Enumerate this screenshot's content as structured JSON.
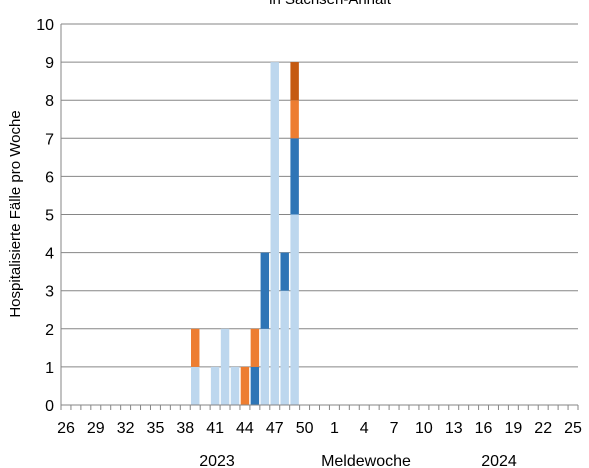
{
  "chart_data": {
    "type": "bar",
    "stacked": true,
    "title": "in Sachsen-Anhalt",
    "xlabel": "Meldewoche",
    "ylabel": "Hospitalisierte Fälle pro Woche",
    "ylim": [
      0,
      10
    ],
    "yticks": [
      0,
      1,
      2,
      3,
      4,
      5,
      6,
      7,
      8,
      9,
      10
    ],
    "grid": true,
    "legend": "none",
    "year_labels": [
      "2023",
      "2024"
    ],
    "categories": [
      "26",
      "27",
      "28",
      "29",
      "30",
      "31",
      "32",
      "33",
      "34",
      "35",
      "36",
      "37",
      "38",
      "39",
      "40",
      "41",
      "42",
      "43",
      "44",
      "45",
      "46",
      "47",
      "48",
      "49",
      "50",
      "51",
      "52",
      "1",
      "2",
      "3",
      "4",
      "5",
      "6",
      "7",
      "8",
      "9",
      "10",
      "11",
      "12",
      "13",
      "14",
      "15",
      "16",
      "17",
      "18",
      "19",
      "20",
      "21",
      "22",
      "23",
      "24",
      "25"
    ],
    "tick_labels": [
      "26",
      "29",
      "32",
      "35",
      "38",
      "41",
      "44",
      "47",
      "50",
      "1",
      "4",
      "7",
      "10",
      "13",
      "16",
      "19",
      "22",
      "25"
    ],
    "series": [
      {
        "color": "#bdd7ee",
        "values": [
          0,
          0,
          0,
          0,
          0,
          0,
          0,
          0,
          0,
          0,
          0,
          0,
          0,
          1,
          0,
          1,
          2,
          1,
          0,
          0,
          2,
          9,
          3,
          5,
          0,
          0,
          0,
          0,
          0,
          0,
          0,
          0,
          0,
          0,
          0,
          0,
          0,
          0,
          0,
          0,
          0,
          0,
          0,
          0,
          0,
          0,
          0,
          0,
          0,
          0,
          0,
          0
        ]
      },
      {
        "color": "#2e75b6",
        "values": [
          0,
          0,
          0,
          0,
          0,
          0,
          0,
          0,
          0,
          0,
          0,
          0,
          0,
          0,
          0,
          0,
          0,
          0,
          0,
          1,
          2,
          0,
          1,
          2,
          0,
          0,
          0,
          0,
          0,
          0,
          0,
          0,
          0,
          0,
          0,
          0,
          0,
          0,
          0,
          0,
          0,
          0,
          0,
          0,
          0,
          0,
          0,
          0,
          0,
          0,
          0,
          0
        ]
      },
      {
        "color": "#ed7d31",
        "values": [
          0,
          0,
          0,
          0,
          0,
          0,
          0,
          0,
          0,
          0,
          0,
          0,
          0,
          1,
          0,
          0,
          0,
          0,
          1,
          1,
          0,
          0,
          0,
          1,
          0,
          0,
          0,
          0,
          0,
          0,
          0,
          0,
          0,
          0,
          0,
          0,
          0,
          0,
          0,
          0,
          0,
          0,
          0,
          0,
          0,
          0,
          0,
          0,
          0,
          0,
          0,
          0
        ]
      },
      {
        "color": "#c55a11",
        "values": [
          0,
          0,
          0,
          0,
          0,
          0,
          0,
          0,
          0,
          0,
          0,
          0,
          0,
          0,
          0,
          0,
          0,
          0,
          0,
          0,
          0,
          0,
          0,
          1,
          0,
          0,
          0,
          0,
          0,
          0,
          0,
          0,
          0,
          0,
          0,
          0,
          0,
          0,
          0,
          0,
          0,
          0,
          0,
          0,
          0,
          0,
          0,
          0,
          0,
          0,
          0,
          0
        ]
      }
    ]
  }
}
